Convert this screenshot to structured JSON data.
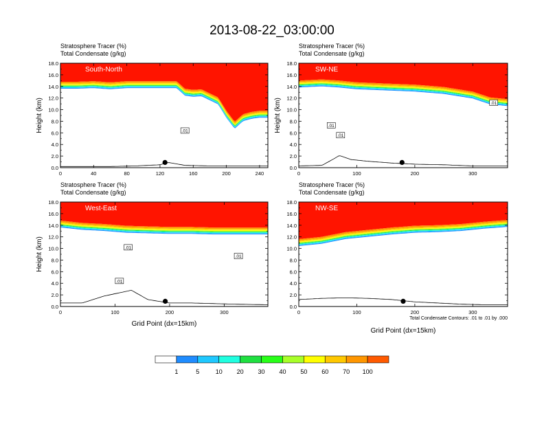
{
  "title": "2013-08-22_03:00:00",
  "chart_data": [
    {
      "type": "heatmap",
      "field_label": "Stratosphere Tracer   (%)",
      "contour_label": "Total Condensate   (g/kg)",
      "panel_label": "South-North",
      "ylabel": "Height (km)",
      "xlabel": "",
      "xlim": [
        0,
        250
      ],
      "ylim": [
        0,
        18
      ],
      "xticks": [
        0,
        40,
        80,
        120,
        160,
        200,
        240
      ],
      "yticks": [
        "0.0",
        "2.0",
        "4.0",
        "6.0",
        "8.0",
        "10.0",
        "12.0",
        "14.0",
        "16.0",
        "18.0"
      ],
      "tropopause_x": [
        0,
        20,
        40,
        60,
        80,
        100,
        120,
        140,
        150,
        160,
        170,
        180,
        190,
        200,
        210,
        220,
        230,
        240,
        250
      ],
      "tropopause_km": [
        14.8,
        14.8,
        14.9,
        14.7,
        14.9,
        14.9,
        14.9,
        14.9,
        13.6,
        13.4,
        13.5,
        12.8,
        12.1,
        9.8,
        7.9,
        9.2,
        9.6,
        9.8,
        9.8
      ],
      "terrain_x": [
        0,
        30,
        60,
        90,
        120,
        130,
        150,
        180,
        210,
        250
      ],
      "terrain_km": [
        0.2,
        0.2,
        0.2,
        0.3,
        0.5,
        0.9,
        0.4,
        0.3,
        0.3,
        0.3
      ],
      "marker_x": 126,
      "contour_labels": [
        {
          "x": 150,
          "y": 6.4,
          "text": ".01"
        }
      ]
    },
    {
      "type": "heatmap",
      "field_label": "Stratosphere Tracer   (%)",
      "contour_label": "Total Condensate   (g/kg)",
      "panel_label": "SW-NE",
      "ylabel": "Height (km)",
      "xlabel": "",
      "xlim": [
        0,
        360
      ],
      "ylim": [
        0,
        18
      ],
      "xticks": [
        0,
        100,
        200,
        300
      ],
      "yticks": [
        "0.0",
        "2.0",
        "4.0",
        "6.0",
        "8.0",
        "10.0",
        "12.0",
        "14.0",
        "16.0",
        "18.0"
      ],
      "tropopause_x": [
        0,
        40,
        70,
        100,
        150,
        200,
        250,
        300,
        330,
        360
      ],
      "tropopause_km": [
        15.0,
        15.2,
        15.0,
        14.7,
        14.5,
        14.3,
        13.9,
        13.1,
        12.1,
        11.8
      ],
      "terrain_x": [
        0,
        40,
        60,
        70,
        90,
        120,
        160,
        200,
        250,
        300,
        360
      ],
      "terrain_km": [
        0.3,
        0.4,
        1.5,
        2.1,
        1.4,
        1.1,
        0.8,
        0.6,
        0.5,
        0.3,
        0.3
      ],
      "marker_x": 178,
      "contour_labels": [
        {
          "x": 56,
          "y": 7.3,
          "text": ".01"
        },
        {
          "x": 72,
          "y": 5.6,
          "text": ".01"
        },
        {
          "x": 336,
          "y": 11.2,
          "text": ".01"
        }
      ]
    },
    {
      "type": "heatmap",
      "field_label": "Stratosphere Tracer   (%)",
      "contour_label": "Total Condensate   (g/kg)",
      "panel_label": "West-East",
      "ylabel": "Height (km)",
      "xlabel": "Grid Point (dx=15km)",
      "xlim": [
        0,
        380
      ],
      "ylim": [
        0,
        18
      ],
      "xticks": [
        0,
        100,
        200,
        300
      ],
      "yticks": [
        "0.0",
        "2.0",
        "4.0",
        "6.0",
        "8.0",
        "10.0",
        "12.0",
        "14.0",
        "16.0",
        "18.0"
      ],
      "tropopause_x": [
        0,
        40,
        80,
        120,
        160,
        200,
        240,
        280,
        320,
        380
      ],
      "tropopause_km": [
        14.8,
        14.4,
        14.2,
        13.9,
        13.8,
        13.7,
        13.7,
        13.6,
        13.6,
        13.6
      ],
      "terrain_x": [
        0,
        40,
        60,
        80,
        110,
        130,
        160,
        200,
        240,
        280,
        320,
        380
      ],
      "terrain_km": [
        0.6,
        0.6,
        1.2,
        1.8,
        2.4,
        2.8,
        1.2,
        0.6,
        0.6,
        0.5,
        0.4,
        0.3
      ],
      "marker_x": 192,
      "contour_labels": [
        {
          "x": 124,
          "y": 10.2,
          "text": ".01"
        },
        {
          "x": 326,
          "y": 8.7,
          "text": ".01"
        },
        {
          "x": 108,
          "y": 4.4,
          "text": ".01"
        }
      ]
    },
    {
      "type": "heatmap",
      "field_label": "Stratosphere Tracer   (%)",
      "contour_label": "Total Condensate   (g/kg)",
      "panel_label": "NW-SE",
      "ylabel": "",
      "xlabel": "Grid Point (dx=15km)",
      "xlim": [
        0,
        360
      ],
      "ylim": [
        0,
        18
      ],
      "xticks": [
        0,
        100,
        200,
        300
      ],
      "yticks": [
        "0.0",
        "2.0",
        "4.0",
        "6.0",
        "8.0",
        "10.0",
        "12.0",
        "14.0",
        "16.0",
        "18.0"
      ],
      "tropopause_x": [
        0,
        40,
        80,
        120,
        160,
        200,
        240,
        280,
        320,
        360
      ],
      "tropopause_km": [
        11.6,
        12.0,
        12.8,
        13.2,
        13.6,
        13.9,
        14.0,
        14.2,
        14.6,
        14.9
      ],
      "terrain_x": [
        0,
        40,
        80,
        120,
        160,
        180,
        200,
        240,
        280,
        320,
        360
      ],
      "terrain_km": [
        1.2,
        1.4,
        1.5,
        1.4,
        1.2,
        1.0,
        0.8,
        0.6,
        0.4,
        0.3,
        0.3
      ],
      "marker_x": 180,
      "contour_labels": [],
      "footnote": "Total Condensate Contours: .01 to .01 by .000"
    }
  ],
  "legend": {
    "colors": [
      "#ffffff",
      "#1f8cff",
      "#1fc8ff",
      "#1fffe0",
      "#1fe040",
      "#28ff18",
      "#a8ff28",
      "#ffff00",
      "#ffc800",
      "#ff9600",
      "#ff5a00",
      "#ff1400"
    ],
    "labels": [
      "1",
      "5",
      "10",
      "20",
      "30",
      "40",
      "50",
      "60",
      "70",
      "100"
    ]
  }
}
